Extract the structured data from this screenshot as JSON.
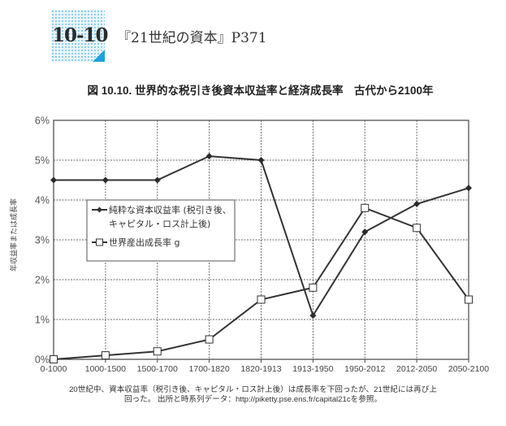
{
  "header": {
    "section_number": "10-10",
    "book_reference": "『21世紀の資本』P371",
    "accent_color": "#1aa3e0"
  },
  "figure": {
    "title": "図 10.10. 世界的な税引き後資本収益率と経済成長率　古代から2100年",
    "caption_line1": "20世紀中、資本収益率（税引き後、キャピタル・ロス計上後）は成長率を下回ったが、21世紀には再び上",
    "caption_line2": "回った。 出所と時系列データ：http://piketty.pse.ens.fr/capital21cを参照。"
  },
  "chart_data": {
    "type": "line",
    "title": "図 10.10. 世界的な税引き後資本収益率と経済成長率　古代から2100年",
    "xlabel": "",
    "ylabel": "年収益率または成長率",
    "categories": [
      "0-1000",
      "1000-1500",
      "1500-1700",
      "1700-1820",
      "1820-1913",
      "1913-1950",
      "1950-2012",
      "2012-2050",
      "2050-2100"
    ],
    "series": [
      {
        "name": "純粋な資本収益率 (税引き後、キャピタル・ロス計上後)",
        "marker": "filled-diamond",
        "values": [
          4.5,
          4.5,
          4.5,
          5.1,
          5.0,
          1.1,
          3.2,
          3.9,
          4.3
        ]
      },
      {
        "name": "世界産出成長率 g",
        "marker": "open-square",
        "values": [
          0.0,
          0.1,
          0.2,
          0.5,
          1.5,
          1.8,
          3.8,
          3.3,
          1.5
        ]
      }
    ],
    "yticks": [
      "0%",
      "1%",
      "2%",
      "3%",
      "4%",
      "5%",
      "6%"
    ],
    "ylim": [
      0,
      6
    ],
    "grid": true,
    "legend_position": "inside-left-middle",
    "legend": {
      "r_line1": "純粋な資本収益率 (税引き後、",
      "r_line2": "キャピタル・ロス計上後)",
      "g_label": "世界産出成長率 g"
    }
  }
}
